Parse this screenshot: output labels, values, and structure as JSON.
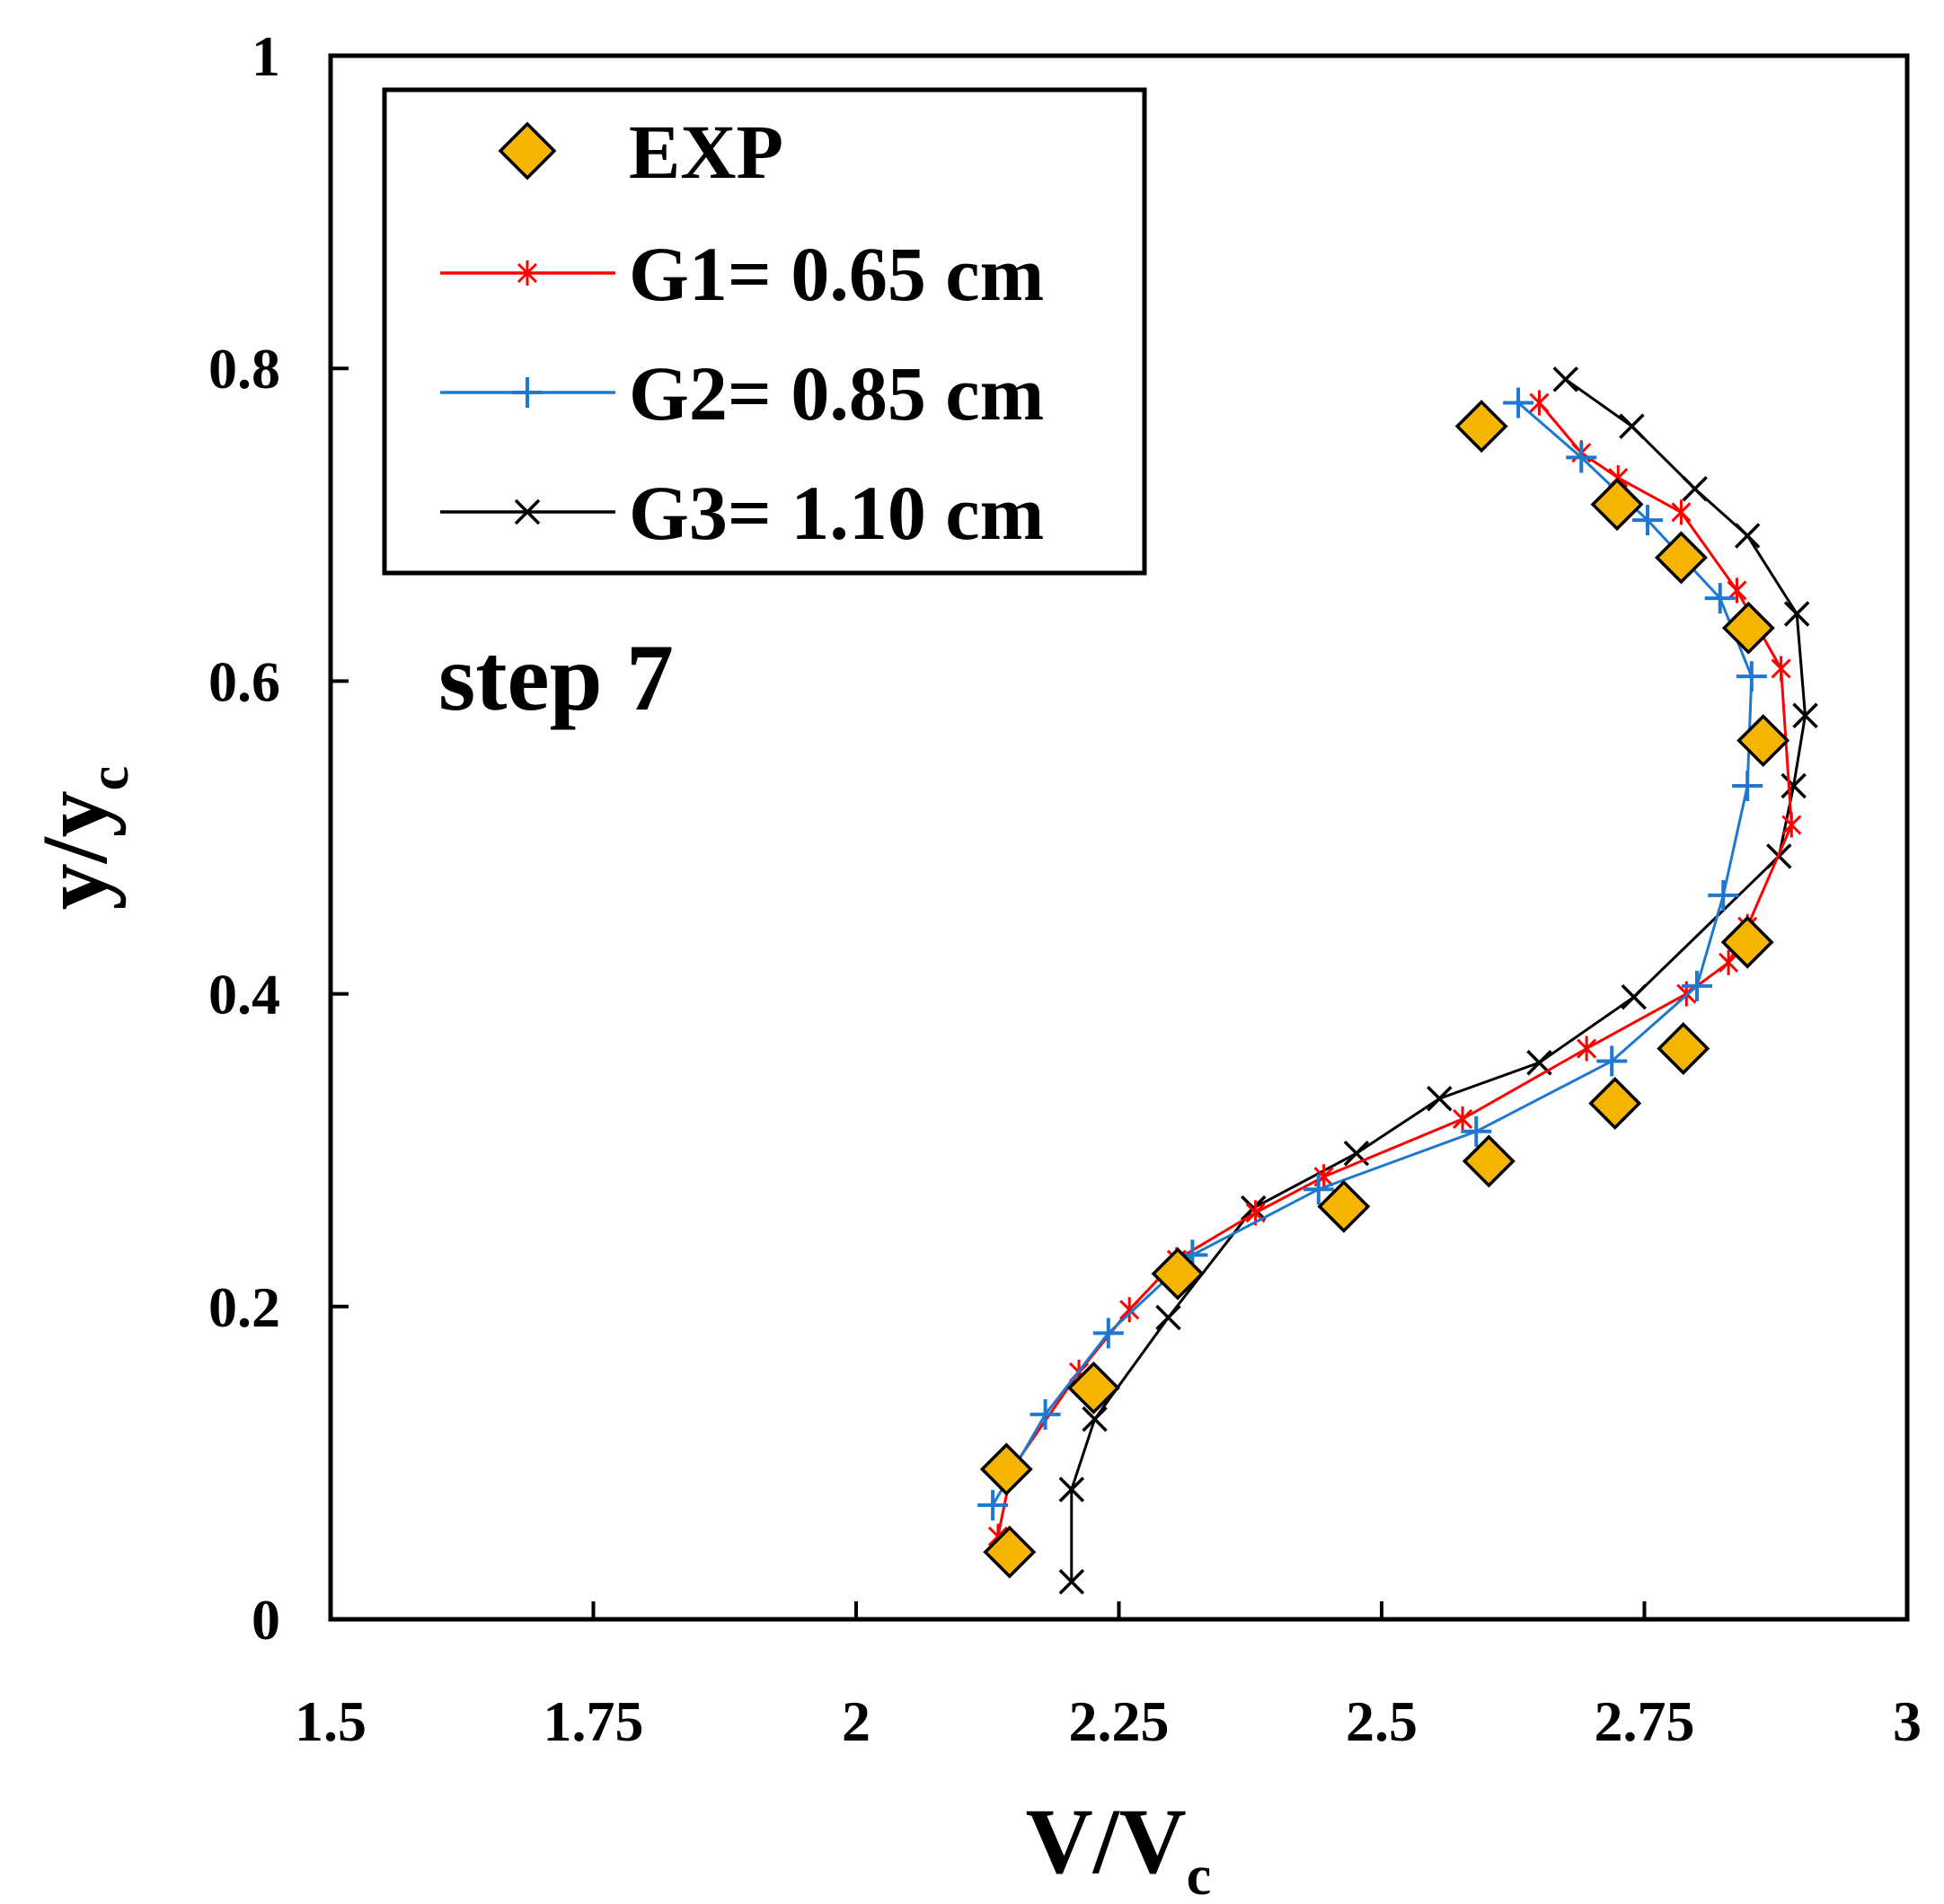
{
  "chart_data": {
    "type": "scatter",
    "annotation": "step 7",
    "xlabel": {
      "main": "V/V",
      "sub": "c"
    },
    "ylabel": {
      "main": "y/y",
      "sub": "c"
    },
    "xlim": [
      1.5,
      3
    ],
    "ylim": [
      0,
      1
    ],
    "x_ticks": [
      1.5,
      1.75,
      2,
      2.25,
      2.5,
      2.75,
      3
    ],
    "x_tick_labels": [
      "1.5",
      "1.75",
      "2",
      "2.25",
      "2.5",
      "2.75",
      "3"
    ],
    "y_ticks": [
      0,
      0.2,
      0.4,
      0.6,
      0.8,
      1
    ],
    "y_tick_labels": [
      "0",
      "0.2",
      "0.4",
      "0.6",
      "0.8",
      "1"
    ],
    "grid": false,
    "legend_position": "top-left",
    "series": [
      {
        "name": "EXP",
        "marker": "diamond",
        "color": "#f5b400",
        "edge_color": "#000000",
        "line": false,
        "points": [
          [
            2.146,
            0.043
          ],
          [
            2.143,
            0.096
          ],
          [
            2.226,
            0.148
          ],
          [
            2.306,
            0.221
          ],
          [
            2.464,
            0.264
          ],
          [
            2.602,
            0.293
          ],
          [
            2.722,
            0.33
          ],
          [
            2.787,
            0.365
          ],
          [
            2.848,
            0.433
          ],
          [
            2.863,
            0.562
          ],
          [
            2.849,
            0.634
          ],
          [
            2.785,
            0.679
          ],
          [
            2.724,
            0.713
          ],
          [
            2.595,
            0.763
          ]
        ]
      },
      {
        "name": "G1= 0.65 cm",
        "marker": "asterisk",
        "color": "#ff0000",
        "line": true,
        "points": [
          [
            2.135,
            0.053
          ],
          [
            2.148,
            0.096
          ],
          [
            2.212,
            0.158
          ],
          [
            2.26,
            0.198
          ],
          [
            2.305,
            0.23
          ],
          [
            2.38,
            0.26
          ],
          [
            2.445,
            0.283
          ],
          [
            2.577,
            0.32
          ],
          [
            2.695,
            0.365
          ],
          [
            2.79,
            0.4
          ],
          [
            2.83,
            0.42
          ],
          [
            2.848,
            0.443
          ],
          [
            2.89,
            0.508
          ],
          [
            2.88,
            0.608
          ],
          [
            2.838,
            0.658
          ],
          [
            2.785,
            0.708
          ],
          [
            2.725,
            0.73
          ],
          [
            2.69,
            0.746
          ],
          [
            2.65,
            0.778
          ]
        ]
      },
      {
        "name": "G2= 0.85 cm",
        "marker": "plus",
        "color": "#1f78d0",
        "line": true,
        "points": [
          [
            2.13,
            0.073
          ],
          [
            2.18,
            0.131
          ],
          [
            2.24,
            0.183
          ],
          [
            2.32,
            0.233
          ],
          [
            2.44,
            0.275
          ],
          [
            2.59,
            0.312
          ],
          [
            2.719,
            0.357
          ],
          [
            2.8,
            0.405
          ],
          [
            2.825,
            0.463
          ],
          [
            2.848,
            0.533
          ],
          [
            2.852,
            0.603
          ],
          [
            2.822,
            0.653
          ],
          [
            2.753,
            0.703
          ],
          [
            2.69,
            0.743
          ],
          [
            2.63,
            0.778
          ]
        ]
      },
      {
        "name": "G3= 1.10 cm",
        "marker": "x",
        "color": "#000000",
        "line": true,
        "points": [
          [
            2.205,
            0.024
          ],
          [
            2.205,
            0.083
          ],
          [
            2.227,
            0.128
          ],
          [
            2.297,
            0.193
          ],
          [
            2.378,
            0.263
          ],
          [
            2.476,
            0.298
          ],
          [
            2.555,
            0.333
          ],
          [
            2.65,
            0.356
          ],
          [
            2.74,
            0.398
          ],
          [
            2.878,
            0.488
          ],
          [
            2.892,
            0.533
          ],
          [
            2.903,
            0.578
          ],
          [
            2.895,
            0.643
          ],
          [
            2.848,
            0.693
          ],
          [
            2.798,
            0.723
          ],
          [
            2.738,
            0.763
          ],
          [
            2.675,
            0.793
          ]
        ]
      }
    ]
  }
}
